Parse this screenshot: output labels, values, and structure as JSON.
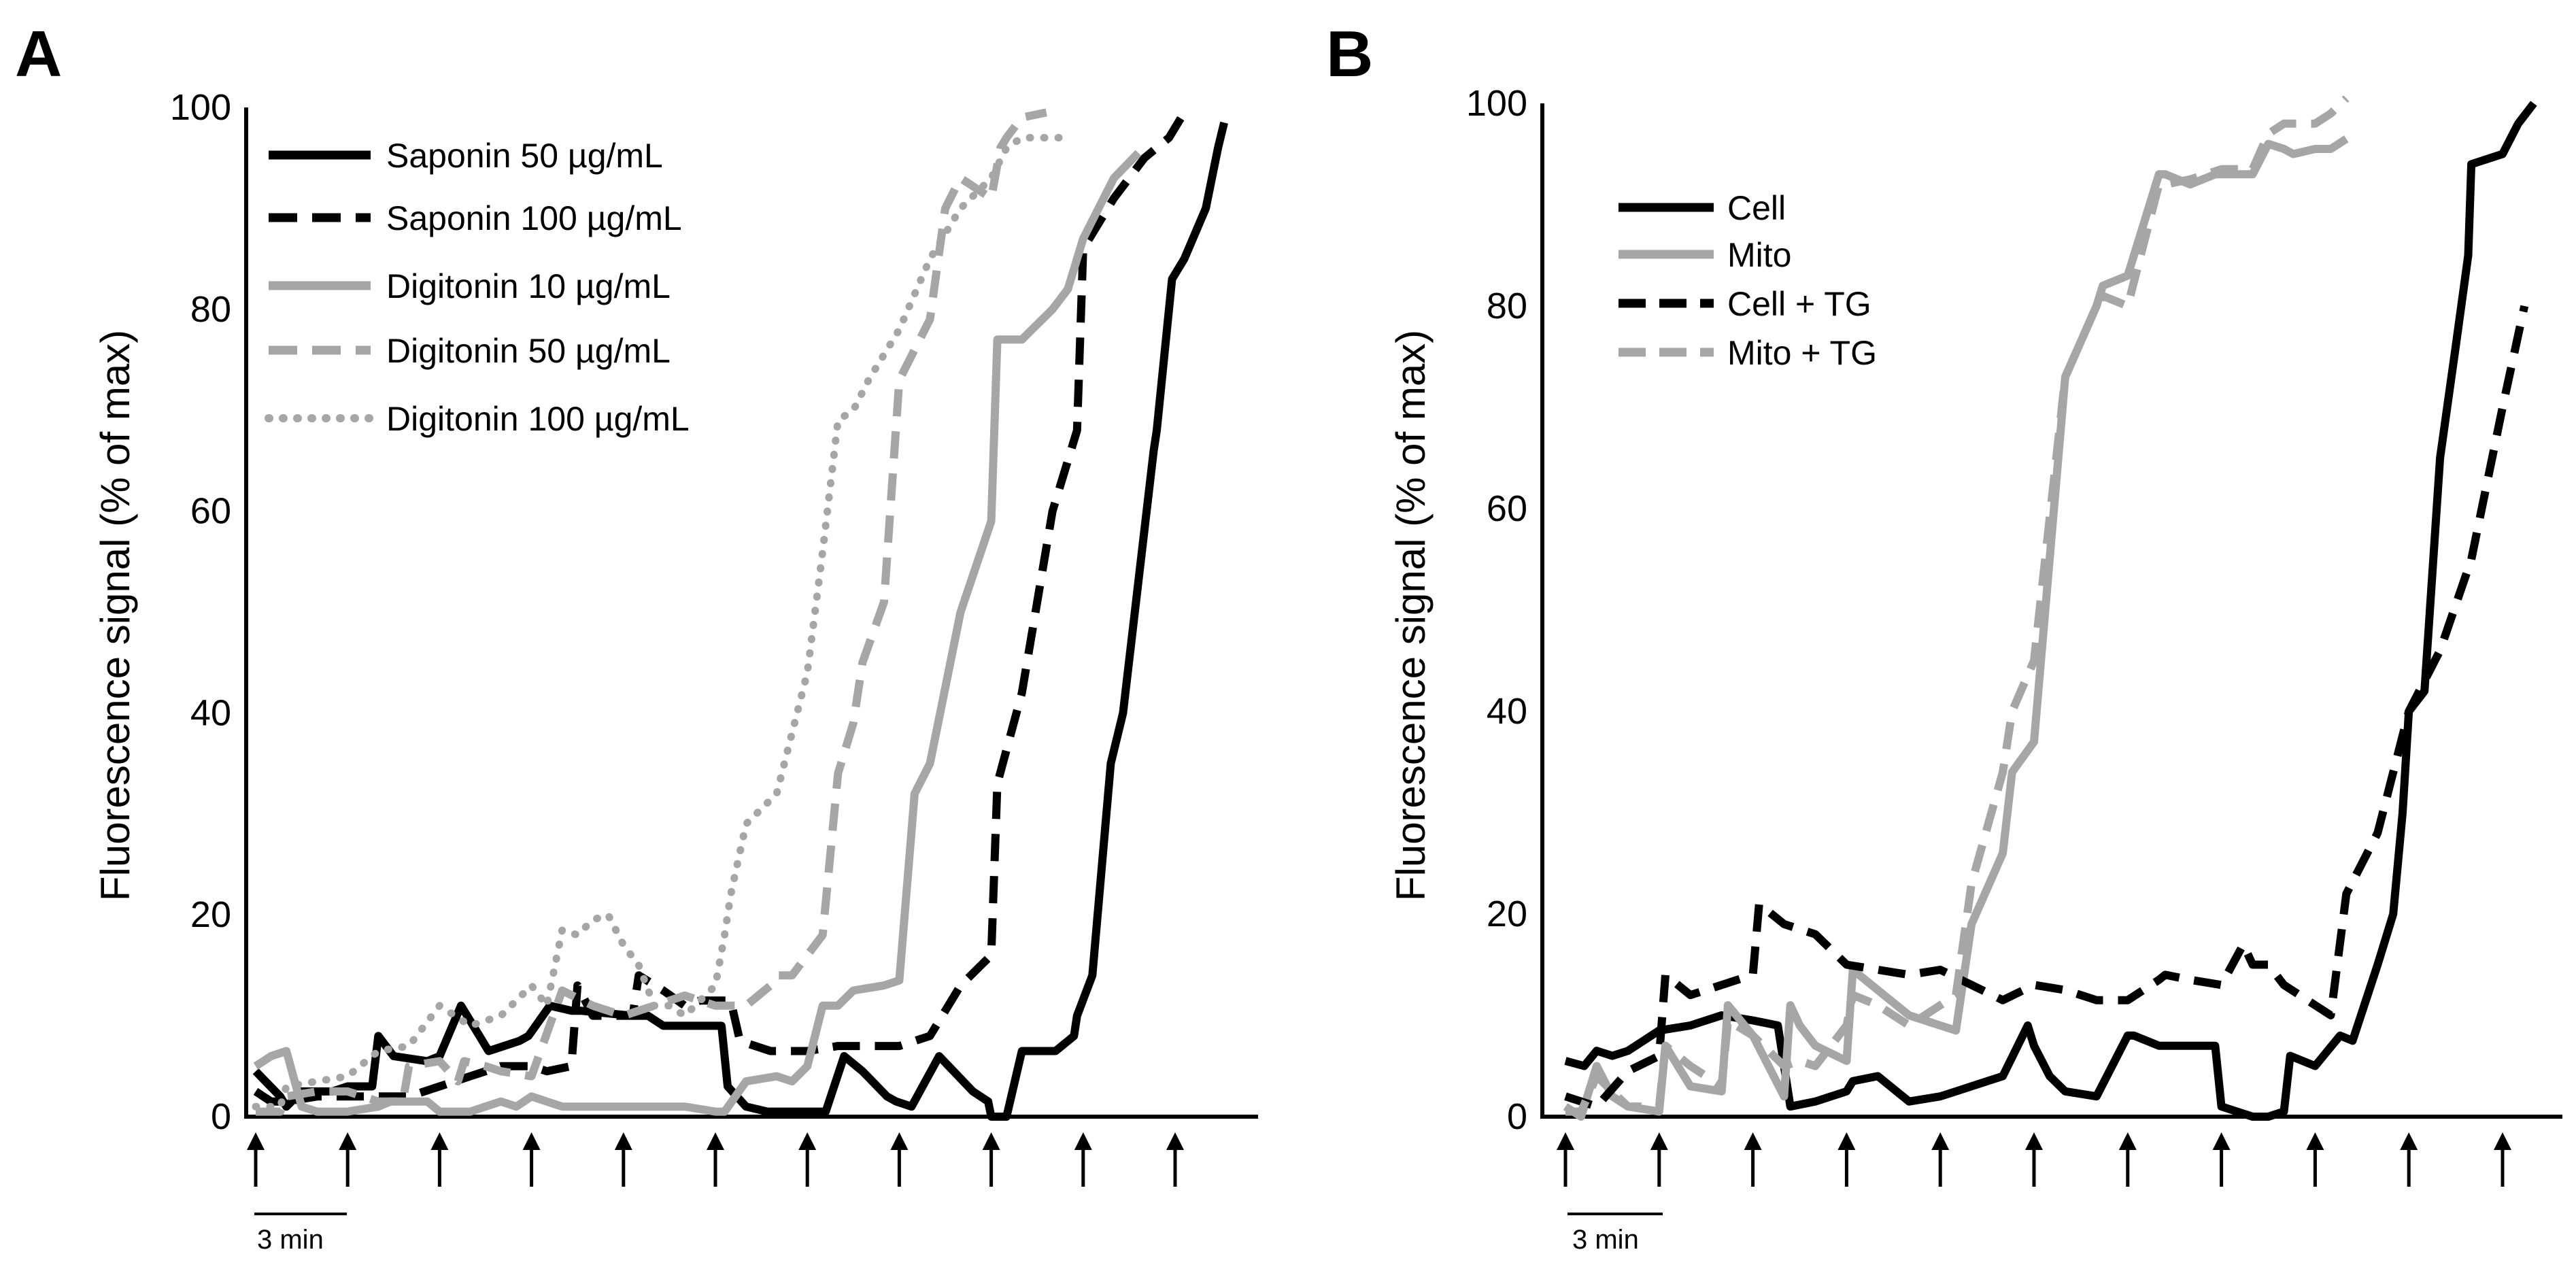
{
  "figure_labels": [
    "A",
    "B"
  ],
  "colors": {
    "black": "#000000",
    "gray": "#a6a6a6"
  },
  "chart_data": [
    {
      "panel": "A",
      "type": "line",
      "title": "",
      "xlabel": "",
      "ylabel": "Fluorescence signal (% of max)",
      "xlim": [
        -0.5,
        30.5
      ],
      "ylim": [
        0,
        100
      ],
      "yticks": [
        0,
        20,
        40,
        60,
        80,
        100
      ],
      "tick_labels": [
        "0",
        "20",
        "40",
        "60",
        "80",
        "100"
      ],
      "arrows_at": [
        0,
        3,
        6,
        9,
        12,
        15,
        18,
        21,
        24,
        27,
        30
      ],
      "scale_bar": {
        "from": 0,
        "to": 3,
        "label": "3 min"
      },
      "legend_position": "top-left",
      "series": [
        {
          "name": "Saponin 50 µg/mL",
          "color": "#000000",
          "style": "solid",
          "x": [
            0,
            0.8,
            1.0,
            1.5,
            2.5,
            3.0,
            3.8,
            4.0,
            4.5,
            5.6,
            6.0,
            6.7,
            7.3,
            7.6,
            8.6,
            8.9,
            9.6,
            10.3,
            10.6,
            12.3,
            12.8,
            13.3,
            13.7,
            15.2,
            15.4,
            16.0,
            16.7,
            17.1,
            18.6,
            19.2,
            19.8,
            20.6,
            20.9,
            21.4,
            22.3,
            23.4,
            23.9,
            24.0,
            24.5,
            25.0,
            26.1,
            26.7,
            26.8,
            27.3,
            27.9,
            28.3,
            29.3,
            29.4,
            29.9,
            30.3,
            31.0,
            31.4,
            31.6
          ],
          "y": [
            4.5,
            2,
            1,
            2.5,
            2.5,
            3,
            3,
            8,
            6,
            5.5,
            6,
            11,
            8,
            6.5,
            7.5,
            8,
            11,
            10.5,
            10.5,
            10,
            10,
            9,
            9,
            9,
            3,
            1,
            0.5,
            0.5,
            0.5,
            6,
            4.5,
            2,
            1.5,
            1,
            6,
            2.5,
            1.5,
            0,
            0,
            6.5,
            6.5,
            8,
            10,
            14,
            35,
            40,
            66,
            68,
            83,
            85,
            90,
            96,
            98.5
          ]
        },
        {
          "name": "Saponin 100 µg/mL",
          "color": "#000000",
          "style": "dashed",
          "x": [
            0,
            0.5,
            1.0,
            2.0,
            3.0,
            4.0,
            5.0,
            6.0,
            6.5,
            7.0,
            8.0,
            9.0,
            9.5,
            10.3,
            10.5,
            11.0,
            12.3,
            12.5,
            13.3,
            14.0,
            14.5,
            15.5,
            15.8,
            16.8,
            17.0,
            18.0,
            19.0,
            20.0,
            21.0,
            22.0,
            23.0,
            24.0,
            24.2,
            25.0,
            26.0,
            26.8,
            27.0,
            28.0,
            29.0,
            29.8,
            30.4
          ],
          "y": [
            2.5,
            1.5,
            1.5,
            2,
            2,
            2,
            2,
            3,
            3.5,
            4,
            5,
            5,
            4.5,
            5,
            13,
            10,
            10,
            14,
            12.5,
            11,
            11.5,
            11.5,
            7.5,
            6.5,
            6.5,
            6.5,
            7,
            7,
            7,
            8,
            13,
            16,
            33,
            42,
            60,
            68,
            86,
            91,
            95,
            97,
            100
          ]
        },
        {
          "name": "Digitonin 10 µg/mL",
          "color": "#a6a6a6",
          "style": "solid",
          "x": [
            0,
            0.5,
            1.0,
            1.5,
            2.0,
            3.0,
            4.0,
            4.4,
            4.8,
            5.6,
            6.0,
            7.0,
            8.0,
            8.5,
            9.0,
            10.0,
            11.0,
            12.0,
            13.0,
            14.0,
            15.0,
            15.3,
            16.0,
            17.0,
            17.5,
            18.0,
            18.5,
            19.0,
            19.5,
            20.5,
            21.0,
            21.5,
            22.0,
            23.0,
            24.0,
            24.2,
            25.0,
            26.0,
            26.5,
            27.0,
            28.0,
            28.8
          ],
          "y": [
            5,
            6,
            6.5,
            1,
            0.5,
            0.5,
            1,
            1.5,
            1.5,
            1.5,
            0.5,
            0.5,
            1.5,
            1,
            2,
            1,
            1,
            1,
            1,
            1,
            0.5,
            0.5,
            3.5,
            4,
            3.5,
            5,
            11,
            11,
            12.5,
            13,
            13.5,
            32,
            35,
            50,
            59,
            77,
            77,
            80,
            82,
            87,
            93,
            95.5
          ]
        },
        {
          "name": "Digitonin 50 µg/mL",
          "color": "#a6a6a6",
          "style": "dashed",
          "x": [
            0,
            0.8,
            1.0,
            2.0,
            3.0,
            4.0,
            4.8,
            5.0,
            6.0,
            6.6,
            6.8,
            7.5,
            8.0,
            9.0,
            10.0,
            11.0,
            12.0,
            13.0,
            14.0,
            15.0,
            16.0,
            16.8,
            17.0,
            17.5,
            18.0,
            18.5,
            19.0,
            19.5,
            19.8,
            20.5,
            21.0,
            22.0,
            22.5,
            23.0,
            24.0,
            24.3,
            24.5,
            25.0,
            25.8
          ],
          "y": [
            0.5,
            0.5,
            2,
            2.5,
            2.5,
            1.5,
            1.5,
            5,
            5.5,
            3.5,
            5.5,
            5,
            4.5,
            4,
            12.5,
            11,
            10,
            11,
            12,
            11,
            11,
            13,
            14,
            14,
            16,
            18,
            34,
            39,
            45,
            51,
            73,
            79,
            90,
            93,
            91,
            96,
            97,
            99,
            99.5
          ]
        },
        {
          "name": "Digitonin 100 µg/mL",
          "color": "#a6a6a6",
          "style": "dotted",
          "x": [
            0,
            0.8,
            1.0,
            2.0,
            3.0,
            4.0,
            5.0,
            6.0,
            7.0,
            8.0,
            9.0,
            9.5,
            10.0,
            10.5,
            11.0,
            11.5,
            12.0,
            12.5,
            13.0,
            13.5,
            14.0,
            15.0,
            15.3,
            15.5,
            16.0,
            17.0,
            18.0,
            18.5,
            19.0,
            19.5,
            20.0,
            21.0,
            22.0,
            23.0,
            24.0,
            24.5,
            25.0,
            26.0,
            26.5
          ],
          "y": [
            1,
            1,
            3,
            3.5,
            4,
            6.5,
            7,
            11,
            9,
            10,
            13,
            11,
            18.5,
            18,
            19.5,
            20,
            17,
            15,
            11,
            11,
            10,
            13,
            18,
            22,
            29,
            32,
            44,
            56,
            69,
            70,
            73,
            78,
            85,
            90,
            93,
            96,
            97,
            97,
            97
          ]
        }
      ]
    },
    {
      "panel": "B",
      "type": "line",
      "title": "",
      "xlabel": "",
      "ylabel": "Fluorescence signal (% of max)",
      "xlim": [
        -0.5,
        30.5
      ],
      "ylim": [
        0,
        100
      ],
      "yticks": [
        0,
        20,
        40,
        60,
        80,
        100
      ],
      "tick_labels": [
        "0",
        "20",
        "40",
        "60",
        "80",
        "100"
      ],
      "arrows_at": [
        0,
        3,
        6,
        9,
        12,
        15,
        18,
        21,
        24,
        27,
        30
      ],
      "scale_bar": {
        "from": 0,
        "to": 3,
        "label": "3 min"
      },
      "legend_position": "top-left",
      "series": [
        {
          "name": "Cell",
          "color": "#000000",
          "style": "solid",
          "x": [
            0,
            0.6,
            1.0,
            1.5,
            2.0,
            3.0,
            4.0,
            5.0,
            6.0,
            6.8,
            7.2,
            8.0,
            9.0,
            9.2,
            10.0,
            11.0,
            12.0,
            12.5,
            13.0,
            14.0,
            14.8,
            15.0,
            15.5,
            16.0,
            17.0,
            18.0,
            18.2,
            19.0,
            20.0,
            20.8,
            21.0,
            22.0,
            22.5,
            23.0,
            23.2,
            24.0,
            24.8,
            25.2,
            26.0,
            26.5,
            26.8,
            27.0,
            27.5,
            28.0,
            28.5,
            28.9,
            29.0,
            30.0,
            30.5,
            31.0
          ],
          "y": [
            5.5,
            5,
            6.5,
            6,
            6.5,
            8.5,
            9,
            10,
            9.5,
            9,
            1,
            1.5,
            2.5,
            3.5,
            4,
            1.5,
            2,
            2.5,
            3,
            4,
            9,
            7,
            4,
            2.5,
            2,
            8,
            8,
            7,
            7,
            7,
            1,
            0,
            0,
            0.5,
            6,
            5,
            8,
            7.5,
            15,
            20,
            30,
            40,
            42,
            65,
            76,
            85,
            94,
            95,
            98,
            100
          ]
        },
        {
          "name": "Mito",
          "color": "#a6a6a6",
          "style": "solid",
          "x": [
            0,
            0.5,
            1.0,
            1.5,
            2.0,
            3.0,
            3.2,
            4.0,
            5.0,
            5.2,
            6.0,
            7.0,
            7.2,
            7.5,
            8.0,
            9.0,
            9.2,
            10.0,
            11.0,
            12.0,
            12.5,
            13.0,
            14.0,
            14.3,
            15.0,
            16.0,
            17.0,
            17.2,
            18.0,
            19.0,
            19.2,
            20.0,
            20.8,
            21.0,
            22.0,
            22.5,
            23.0,
            23.3,
            24.0,
            24.5,
            25.0
          ],
          "y": [
            1,
            0,
            5,
            2,
            1,
            0.5,
            7,
            3,
            2.5,
            11,
            8,
            2,
            11,
            9,
            7,
            5.5,
            14.5,
            12.5,
            10,
            9,
            8.5,
            19,
            26,
            34,
            37,
            73,
            80,
            82,
            83,
            93,
            93,
            92,
            93,
            93,
            93,
            96,
            95.5,
            95,
            95.5,
            95.5,
            96.5
          ]
        },
        {
          "name": "Cell + TG",
          "color": "#000000",
          "style": "dashed",
          "x": [
            0,
            1.0,
            2.0,
            3.0,
            3.2,
            4.0,
            5.0,
            6.0,
            6.2,
            7.0,
            8.0,
            9.0,
            10.0,
            11.0,
            12.0,
            13.0,
            14.0,
            15.0,
            16.0,
            17.0,
            18.0,
            19.0,
            19.2,
            20.0,
            21.0,
            21.7,
            22.0,
            22.5,
            23.0,
            24.0,
            24.5,
            25.0,
            25.5,
            26.0,
            27.0,
            28.0,
            29.0,
            30.0,
            30.7
          ],
          "y": [
            2,
            1,
            4.5,
            6,
            14,
            12,
            13,
            14,
            21,
            19,
            18,
            15,
            14.5,
            14,
            14.5,
            13,
            11.5,
            13,
            12.5,
            11.5,
            11.5,
            13.5,
            14,
            13.5,
            13,
            17,
            15,
            15,
            13,
            11,
            10,
            22,
            25,
            28,
            40,
            46,
            55,
            70,
            80
          ]
        },
        {
          "name": "Mito + TG",
          "color": "#a6a6a6",
          "style": "dashed",
          "x": [
            0,
            0.5,
            1.0,
            1.5,
            2.0,
            3.0,
            3.2,
            4.0,
            5.0,
            5.2,
            6.0,
            7.0,
            7.5,
            8.0,
            9.0,
            9.2,
            10.0,
            11.0,
            12.0,
            12.5,
            13.0,
            14.0,
            14.3,
            15.0,
            16.0,
            17.0,
            17.2,
            18.0,
            19.0,
            19.2,
            20.0,
            21.0,
            22.0,
            22.5,
            23.0,
            24.0,
            24.5,
            25.0
          ],
          "y": [
            0.5,
            0.5,
            4,
            2.5,
            1,
            1,
            7,
            5,
            3,
            9.5,
            8,
            5,
            5.5,
            5,
            9,
            12,
            11,
            9,
            11,
            12,
            23,
            34,
            40,
            45,
            73,
            80,
            81,
            80,
            92,
            92,
            92.5,
            93.5,
            93.5,
            97,
            98,
            98,
            99,
            100.5
          ]
        }
      ]
    }
  ]
}
